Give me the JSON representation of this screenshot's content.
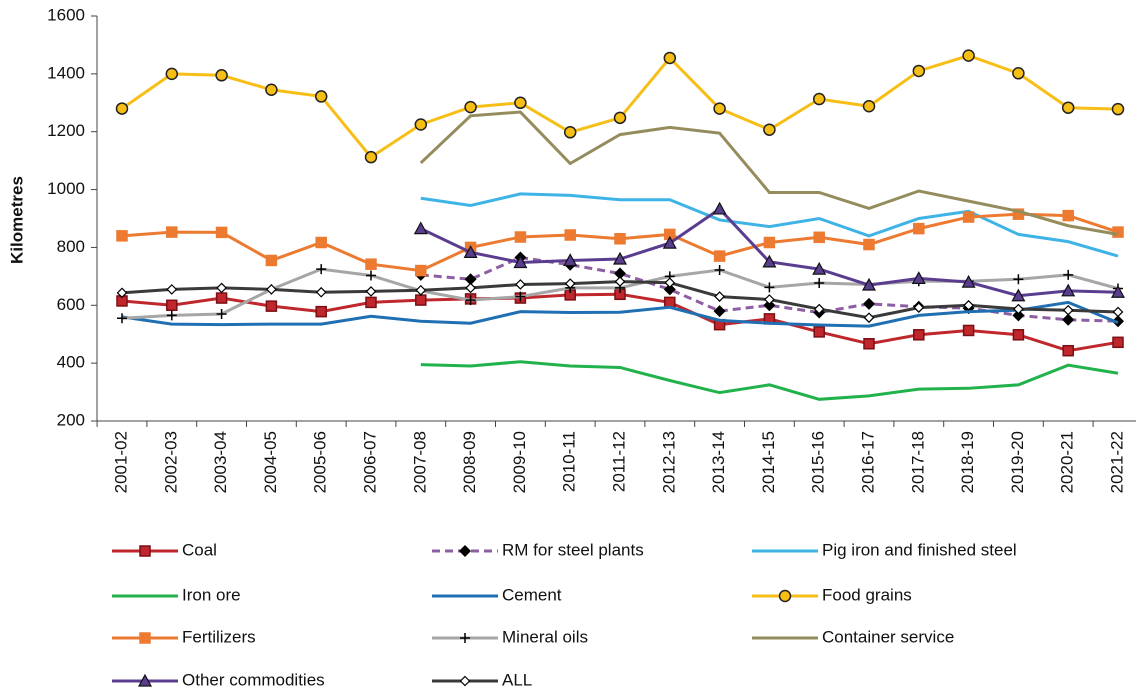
{
  "chart_data": {
    "type": "line",
    "y_label": "Kilometres",
    "categories": [
      "2001-02",
      "2002-03",
      "2003-04",
      "2004-05",
      "2005-06",
      "2006-07",
      "2007-08",
      "2008-09",
      "2009-10",
      "2010-11",
      "2011-12",
      "2012-13",
      "2013-14",
      "2014-15",
      "2015-16",
      "2016-17",
      "2017-18",
      "2018-19",
      "2019-20",
      "2020-21",
      "2021-22"
    ],
    "ylim": [
      200,
      1600
    ],
    "yticks": [
      200,
      400,
      600,
      800,
      1000,
      1200,
      1400,
      1600
    ],
    "series": [
      {
        "name": "Coal",
        "color": "#c0272d",
        "marker": "square",
        "values": [
          615,
          600,
          625,
          597,
          578,
          610,
          618,
          622,
          625,
          636,
          638,
          610,
          533,
          553,
          508,
          467,
          498,
          513,
          498,
          443,
          472
        ]
      },
      {
        "name": "RM for steel plants",
        "color": "#8e5ea2",
        "marker": "diamond",
        "dashed": true,
        "values": [
          null,
          null,
          null,
          null,
          null,
          null,
          705,
          690,
          765,
          740,
          710,
          655,
          580,
          600,
          575,
          605,
          595,
          590,
          565,
          550,
          545
        ]
      },
      {
        "name": "Pig iron and finished steel",
        "color": "#3eb3e6",
        "marker": "none",
        "values": [
          null,
          null,
          null,
          null,
          null,
          null,
          970,
          945,
          985,
          980,
          965,
          965,
          895,
          872,
          900,
          840,
          900,
          925,
          845,
          820,
          770
        ]
      },
      {
        "name": "Iron ore",
        "color": "#22b24c",
        "marker": "none",
        "values": [
          null,
          null,
          null,
          null,
          null,
          null,
          395,
          390,
          405,
          390,
          385,
          340,
          298,
          325,
          275,
          287,
          310,
          313,
          325,
          393,
          365
        ]
      },
      {
        "name": "Cement",
        "color": "#1f6fb2",
        "marker": "none",
        "values": [
          560,
          535,
          533,
          535,
          535,
          562,
          545,
          538,
          578,
          575,
          576,
          593,
          548,
          538,
          532,
          528,
          565,
          578,
          583,
          610,
          540
        ]
      },
      {
        "name": "Food grains",
        "color": "#f7be16",
        "marker": "circle",
        "values": [
          1280,
          1400,
          1395,
          1345,
          1322,
          1112,
          1225,
          1285,
          1300,
          1198,
          1248,
          1455,
          1280,
          1207,
          1313,
          1288,
          1410,
          1463,
          1402,
          1283,
          1278
        ]
      },
      {
        "name": "Fertilizers",
        "color": "#ec7a30",
        "marker": "square",
        "values": [
          840,
          853,
          852,
          755,
          817,
          742,
          720,
          800,
          836,
          843,
          830,
          845,
          770,
          817,
          835,
          810,
          865,
          905,
          915,
          910,
          853
        ]
      },
      {
        "name": "Mineral oils",
        "color": "#a6a6a6",
        "marker": "plus",
        "values": [
          555,
          565,
          570,
          655,
          725,
          703,
          650,
          618,
          630,
          660,
          660,
          700,
          722,
          662,
          677,
          672,
          683,
          683,
          690,
          705,
          658
        ]
      },
      {
        "name": "Container service",
        "color": "#958c5e",
        "marker": "none",
        "values": [
          null,
          null,
          null,
          null,
          null,
          null,
          1092,
          1255,
          1268,
          1090,
          1190,
          1215,
          1195,
          990,
          990,
          935,
          995,
          960,
          925,
          875,
          845
        ]
      },
      {
        "name": "Other commodities",
        "color": "#5b3d8f",
        "marker": "triangle",
        "values": [
          null,
          null,
          null,
          null,
          null,
          null,
          865,
          783,
          748,
          755,
          760,
          815,
          933,
          750,
          725,
          670,
          693,
          680,
          633,
          650,
          645
        ]
      },
      {
        "name": "ALL",
        "color": "#3a3a3a",
        "marker": "smalldiamond",
        "values": [
          643,
          655,
          660,
          655,
          645,
          648,
          652,
          660,
          672,
          675,
          682,
          678,
          630,
          620,
          587,
          557,
          592,
          600,
          587,
          583,
          577
        ]
      }
    ]
  }
}
